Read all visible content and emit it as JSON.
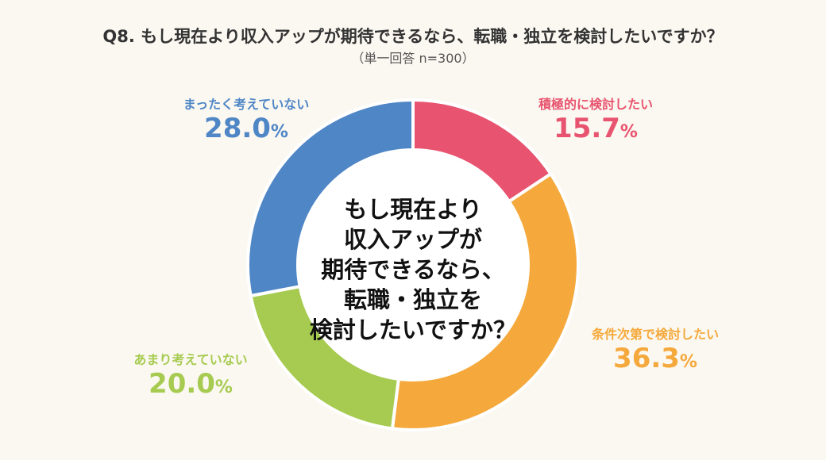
{
  "header": {
    "title": "Q8. もし現在より収入アップが期待できるなら、転職・独立を検討したいですか？",
    "subtitle": "（単一回答 n=300）"
  },
  "center": {
    "lines": [
      "もし現在より",
      "収入アップが",
      "期待できるなら、",
      "転職・独立を",
      "検討したいですか？"
    ]
  },
  "chart_data": {
    "type": "pie",
    "categories": [
      "積極的に検討したい",
      "条件次第で検討したい",
      "あまり考えていない",
      "まったく考えていない"
    ],
    "values": [
      15.7,
      36.3,
      20.0,
      28.0
    ],
    "value_labels": [
      "15.7",
      "36.3",
      "20.0",
      "28.0"
    ],
    "unit": "%",
    "colors": [
      "#e8546f",
      "#f5a93c",
      "#a6cb50",
      "#4f86c6"
    ]
  }
}
